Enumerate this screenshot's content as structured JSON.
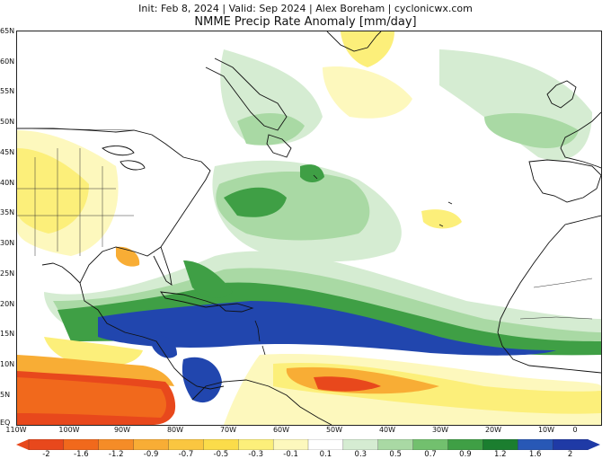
{
  "header": {
    "line1": "Init: Feb 8, 2024 | Valid: Sep 2024 | Alex Boreham | cyclonicwx.com",
    "line2": "NMME Precip Rate Anomaly [mm/day]"
  },
  "map": {
    "lat_labels": [
      "65N",
      "60N",
      "55N",
      "50N",
      "45N",
      "40N",
      "35N",
      "30N",
      "25N",
      "20N",
      "15N",
      "10N",
      "5N",
      "EQ"
    ],
    "lon_labels": [
      "110W",
      "100W",
      "90W",
      "80W",
      "70W",
      "60W",
      "50W",
      "40W",
      "30W",
      "20W",
      "10W",
      "0"
    ]
  },
  "colorbar": {
    "ticks": [
      "-2",
      "-1.6",
      "-1.2",
      "-0.9",
      "-0.7",
      "-0.5",
      "-0.3",
      "-0.1",
      "0.1",
      "0.3",
      "0.5",
      "0.7",
      "0.9",
      "1.2",
      "1.6",
      "2"
    ],
    "colors": [
      "#e8481c",
      "#f1691c",
      "#f58c27",
      "#f8ad35",
      "#fac640",
      "#fbdc4a",
      "#fcef7a",
      "#fdf8bd",
      "#ffffff",
      "#d5ecd2",
      "#a9d9a4",
      "#72c06e",
      "#3f9f45",
      "#1b7e2f",
      "#2858b6",
      "#1f3aa6"
    ]
  },
  "colors": {
    "dry_strong": "#e8481c",
    "dry": "#fbdc4a",
    "wet": "#3f9f45",
    "wet_strong": "#2146ae",
    "coast": "#111111"
  }
}
